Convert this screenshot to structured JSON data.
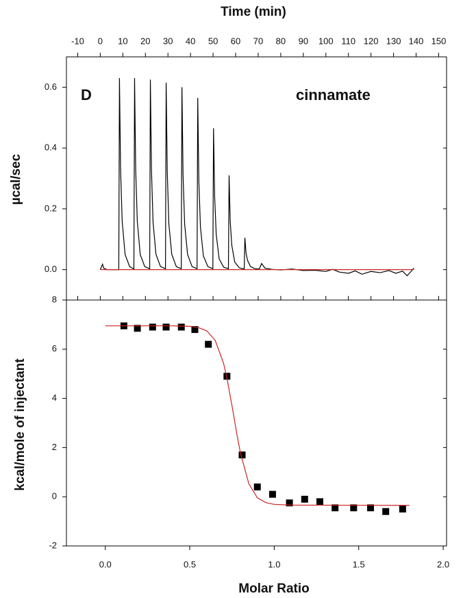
{
  "chart_data": [
    {
      "type": "line",
      "x_label": "Time (min)",
      "y_label": "µcal/sec",
      "annotations": [
        "D",
        "cinnamate"
      ],
      "xlim": [
        -15,
        153.5
      ],
      "xticks": [
        -10,
        0,
        10,
        20,
        30,
        40,
        50,
        60,
        70,
        80,
        90,
        100,
        110,
        120,
        130,
        140,
        150
      ],
      "ylim": [
        -0.1,
        0.7
      ],
      "yticks": [
        {
          "value": 0,
          "label": "0.0"
        },
        0.2,
        0.4,
        0.6
      ],
      "series": [
        {
          "color": "#000000",
          "x": [
            0,
            1.0,
            1.5,
            3,
            8.2,
            8.5,
            9.0,
            9.7,
            11.0,
            13.0,
            14.9,
            15.2,
            15.7,
            16.4,
            17.7,
            19.7,
            21.9,
            22.2,
            22.7,
            23.4,
            24.7,
            26.7,
            28.9,
            29.2,
            29.7,
            30.4,
            31.7,
            33.7,
            35.9,
            36.2,
            36.7,
            37.4,
            38.7,
            40.7,
            42.9,
            43.2,
            43.7,
            44.4,
            45.7,
            47.7,
            49.9,
            50.2,
            50.7,
            51.4,
            52.7,
            54.7,
            56.8,
            57.1,
            57.6,
            58.3,
            59.6,
            61.6,
            63.8,
            64.1,
            64.6,
            65.3,
            66.6,
            68.6,
            70.5,
            71.5,
            73,
            76,
            80,
            85,
            90,
            95,
            100,
            103,
            106,
            110,
            113,
            116,
            120,
            124,
            128,
            131,
            134,
            136,
            138,
            139
          ],
          "values": [
            0,
            0.018,
            0.005,
            0,
            0,
            0.63,
            0.33,
            0.16,
            0.05,
            0.01,
            0.002,
            0.63,
            0.33,
            0.16,
            0.05,
            0.01,
            0.003,
            0.625,
            0.325,
            0.155,
            0.05,
            0.01,
            0.003,
            0.615,
            0.32,
            0.15,
            0.05,
            0.01,
            0.003,
            0.6,
            0.31,
            0.15,
            0.05,
            0.01,
            0.003,
            0.565,
            0.29,
            0.14,
            0.045,
            0.01,
            0.003,
            0.465,
            0.24,
            0.115,
            0.035,
            0.008,
            0.003,
            0.31,
            0.16,
            0.08,
            0.025,
            0.006,
            0.002,
            0.105,
            0.055,
            0.03,
            0.01,
            0.003,
            0.002,
            0.02,
            0.005,
            0.001,
            -0.001,
            0.002,
            -0.003,
            -0.002,
            -0.006,
            0.001,
            -0.008,
            -0.012,
            -0.004,
            -0.015,
            -0.006,
            -0.01,
            -0.003,
            -0.012,
            -0.005,
            -0.02,
            -0.004,
            0.005
          ]
        },
        {
          "color": "#cc2222",
          "x": [
            0,
            139
          ],
          "values": [
            0,
            0
          ]
        }
      ]
    },
    {
      "type": "scatter",
      "x_label": "Molar Ratio",
      "y_label": "kcal/mole of injectant",
      "xlim": [
        -0.23,
        2.02
      ],
      "xticks": [
        {
          "value": 0,
          "label": "0.0"
        },
        0.5,
        {
          "value": 1,
          "label": "1.0"
        },
        1.5,
        {
          "value": 2,
          "label": "2.0"
        }
      ],
      "ylim": [
        -2,
        8
      ],
      "yticks": [
        -2,
        0,
        2,
        4,
        6,
        8
      ],
      "series": [
        {
          "color": "#000000",
          "mode": "markers",
          "x": [
            0.11,
            0.19,
            0.28,
            0.36,
            0.45,
            0.53,
            0.61,
            0.72,
            0.81,
            0.9,
            0.99,
            1.09,
            1.18,
            1.27,
            1.36,
            1.47,
            1.57,
            1.66,
            1.76
          ],
          "values": [
            6.95,
            6.85,
            6.9,
            6.9,
            6.9,
            6.8,
            6.2,
            4.9,
            1.7,
            0.4,
            0.1,
            -0.25,
            -0.1,
            -0.2,
            -0.45,
            -0.45,
            -0.45,
            -0.6,
            -0.5
          ]
        },
        {
          "color": "#cc2222",
          "mode": "line",
          "x": [
            0,
            0.4,
            0.5,
            0.55,
            0.6,
            0.65,
            0.7,
            0.72,
            0.75,
            0.78,
            0.8,
            0.85,
            0.9,
            0.95,
            1.0,
            1.1,
            1.8
          ],
          "values": [
            6.95,
            6.95,
            6.93,
            6.88,
            6.75,
            6.37,
            5.43,
            4.83,
            3.7,
            2.5,
            1.78,
            0.52,
            -0.04,
            -0.24,
            -0.31,
            -0.34,
            -0.35
          ]
        }
      ]
    }
  ]
}
